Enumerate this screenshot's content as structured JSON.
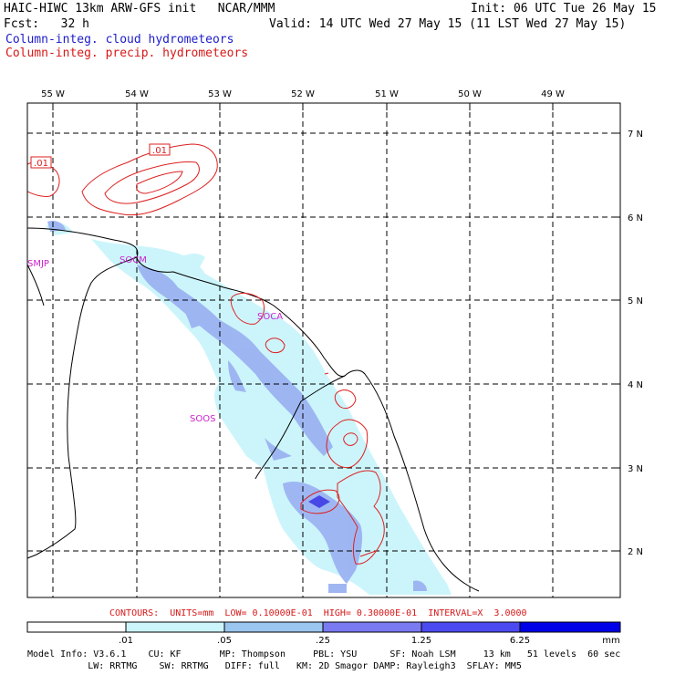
{
  "header": {
    "model_line": "HAIC-HIWC 13km ARW-GFS init   NCAR/MMM",
    "init_line": "Init: 06 UTC Tue 26 May 15",
    "fcst_line": "Fcst:   32 h",
    "valid_line": "Valid: 14 UTC Wed 27 May 15 (11 LST Wed 27 May 15)",
    "field1": "Column-integ. cloud hydrometeors",
    "field2": "Column-integ. precip. hydrometeors"
  },
  "map": {
    "lon_labels": [
      "55 W",
      "54 W",
      "53 W",
      "52 W",
      "51 W",
      "50 W",
      "49 W"
    ],
    "lat_labels": [
      "7 N",
      "6 N",
      "5 N",
      "4 N",
      "3 N",
      "2 N"
    ],
    "stations": [
      "SMJP",
      "SOCM",
      "SOCA",
      "SOOS"
    ],
    "contour_labels": [
      ".01",
      ".01"
    ]
  },
  "contours_line": "CONTOURS:  UNITS=mm  LOW= 0.10000E-01  HIGH= 0.30000E-01  INTERVAL=X  3.0000",
  "colorbar": {
    "tick_labels": [
      ".01",
      ".05",
      ".25",
      "1.25",
      "6.25"
    ],
    "units": "mm",
    "colors": [
      "#ffffff",
      "#ccf5fb",
      "#9ac6f0",
      "#7a7af2",
      "#4a4af0",
      "#2222ee",
      "#0000e8"
    ]
  },
  "footer": {
    "line1": "Model Info: V3.6.1    CU: KF       MP: Thompson     PBL: YSU      SF: Noah LSM     13 km   51 levels  60 sec",
    "line2": "           LW: RRTMG    SW: RRTMG   DIFF: full   KM: 2D Smagor DAMP: Rayleigh3  SFLAY: MM5"
  }
}
